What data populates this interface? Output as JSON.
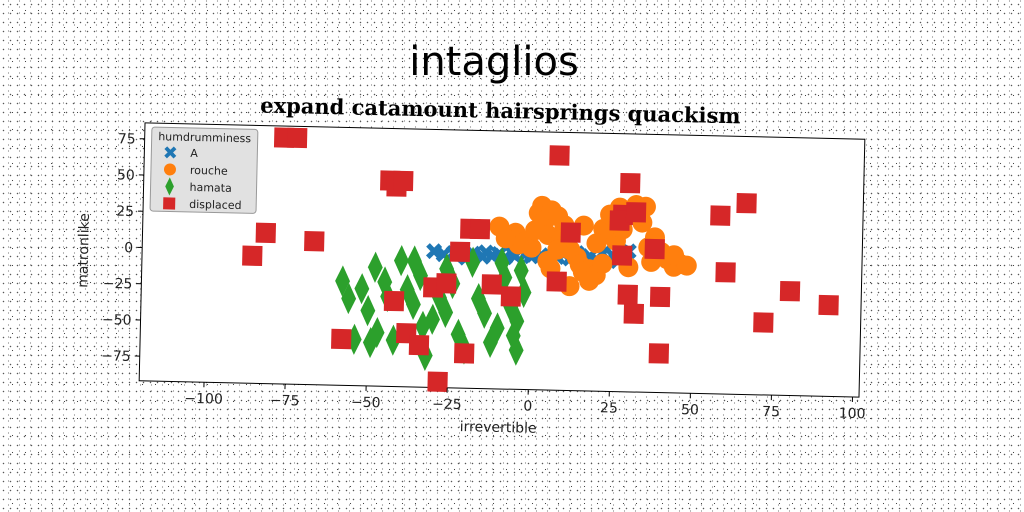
{
  "chart_data": {
    "type": "scatter",
    "suptitle": "intaglios",
    "title": "expand catamount hairsprings quackism",
    "xlabel": "irrevertible",
    "ylabel": "matronlike",
    "xlim": [
      -120,
      102
    ],
    "ylim": [
      -92,
      86
    ],
    "xticks": [
      -100,
      -75,
      -50,
      -25,
      0,
      25,
      50,
      75,
      100
    ],
    "yticks": [
      -75,
      -50,
      -25,
      0,
      25,
      50,
      75
    ],
    "xtick_labels": [
      "−100",
      "−75",
      "−50",
      "−25",
      "0",
      "25",
      "50",
      "75",
      "100"
    ],
    "ytick_labels": [
      "−75",
      "−50",
      "−25",
      "0",
      "25",
      "50",
      "75"
    ],
    "grid": false,
    "legend": {
      "title": "humdrumminess",
      "placement": "top-left"
    },
    "series": [
      {
        "name": "A",
        "marker": "X",
        "color": "#1f77b4",
        "points": [
          [
            -30,
            2
          ],
          [
            -27,
            0
          ],
          [
            -24,
            1
          ],
          [
            -21,
            0
          ],
          [
            -18,
            1
          ],
          [
            -15,
            -1
          ],
          [
            -12,
            0
          ],
          [
            -10,
            1
          ],
          [
            -8,
            -1
          ],
          [
            -5,
            0
          ],
          [
            -2,
            1
          ],
          [
            0,
            0
          ],
          [
            3,
            1
          ],
          [
            5,
            -1
          ],
          [
            8,
            0
          ],
          [
            10,
            2
          ],
          [
            12,
            -1
          ],
          [
            15,
            0
          ],
          [
            18,
            1
          ],
          [
            20,
            -1
          ],
          [
            22,
            3
          ],
          [
            25,
            2
          ],
          [
            28,
            4
          ],
          [
            30,
            5
          ],
          [
            -20,
            -2
          ],
          [
            -6,
            2
          ],
          [
            6,
            -2
          ],
          [
            14,
            3
          ],
          [
            24,
            -2
          ],
          [
            -14,
            2
          ]
        ]
      },
      {
        "name": "rouche",
        "marker": "o",
        "color": "#ff7f0e",
        "points": [
          [
            -10,
            20
          ],
          [
            -5,
            16
          ],
          [
            -2,
            10
          ],
          [
            0,
            6
          ],
          [
            2,
            30
          ],
          [
            3,
            35
          ],
          [
            4,
            25
          ],
          [
            5,
            15
          ],
          [
            6,
            32
          ],
          [
            8,
            28
          ],
          [
            10,
            22
          ],
          [
            12,
            5
          ],
          [
            14,
            0
          ],
          [
            15,
            -5
          ],
          [
            16,
            -10
          ],
          [
            18,
            -8
          ],
          [
            20,
            -12
          ],
          [
            22,
            20
          ],
          [
            24,
            30
          ],
          [
            25,
            15
          ],
          [
            27,
            35
          ],
          [
            28,
            33
          ],
          [
            30,
            30
          ],
          [
            32,
            37
          ],
          [
            35,
            36
          ],
          [
            38,
            15
          ],
          [
            40,
            5
          ],
          [
            42,
            0
          ],
          [
            44,
            -5
          ],
          [
            46,
            -3
          ],
          [
            48,
            -4
          ],
          [
            -4,
            8
          ],
          [
            6,
            -8
          ],
          [
            18,
            -16
          ],
          [
            30,
            -6
          ],
          [
            34,
            25
          ],
          [
            26,
            12
          ],
          [
            9,
            12
          ],
          [
            16,
            22
          ],
          [
            37,
            -2
          ],
          [
            12,
            -20
          ],
          [
            20,
            10
          ],
          [
            -8,
            12
          ],
          [
            1,
            18
          ],
          [
            8,
            5
          ],
          [
            22,
            -4
          ],
          [
            36,
            8
          ],
          [
            44,
            3
          ],
          [
            5,
            -3
          ],
          [
            28,
            20
          ]
        ]
      },
      {
        "name": "hamata",
        "marker": "d",
        "color": "#2ca02c",
        "points": [
          [
            -58,
            -20
          ],
          [
            -56,
            -32
          ],
          [
            -52,
            -25
          ],
          [
            -50,
            -40
          ],
          [
            -48,
            -10
          ],
          [
            -47,
            -55
          ],
          [
            -45,
            -20
          ],
          [
            -44,
            -30
          ],
          [
            -42,
            -60
          ],
          [
            -40,
            -5
          ],
          [
            -38,
            -25
          ],
          [
            -36,
            -35
          ],
          [
            -34,
            -15
          ],
          [
            -33,
            -50
          ],
          [
            -32,
            -70
          ],
          [
            -30,
            -45
          ],
          [
            -28,
            -30
          ],
          [
            -26,
            -10
          ],
          [
            -24,
            -20
          ],
          [
            -22,
            -55
          ],
          [
            -20,
            -65
          ],
          [
            -18,
            -5
          ],
          [
            -16,
            -30
          ],
          [
            -14,
            -40
          ],
          [
            -12,
            -60
          ],
          [
            -10,
            -50
          ],
          [
            -8,
            -15
          ],
          [
            -6,
            -35
          ],
          [
            -5,
            -55
          ],
          [
            -4,
            -65
          ],
          [
            -3,
            -10
          ],
          [
            -2,
            -25
          ],
          [
            -54,
            -60
          ],
          [
            -36,
            -5
          ],
          [
            -26,
            -40
          ],
          [
            -9,
            -5
          ],
          [
            -4,
            -45
          ],
          [
            -49,
            -62
          ]
        ]
      },
      {
        "name": "displaced",
        "marker": "s",
        "color": "#d62728",
        "points": [
          [
            -77,
            78
          ],
          [
            -73,
            78
          ],
          [
            -86,
            -4
          ],
          [
            -82,
            12
          ],
          [
            -67,
            7
          ],
          [
            -58,
            -60
          ],
          [
            -44,
            50
          ],
          [
            -42,
            46
          ],
          [
            -40,
            50
          ],
          [
            -42,
            -33
          ],
          [
            -38,
            -55
          ],
          [
            -34,
            -63
          ],
          [
            -30,
            -23
          ],
          [
            -28,
            -88
          ],
          [
            -26,
            -20
          ],
          [
            -22,
            2
          ],
          [
            -20,
            -68
          ],
          [
            -19,
            18
          ],
          [
            -16,
            18
          ],
          [
            -12,
            -20
          ],
          [
            -6,
            -28
          ],
          [
            8,
            -17
          ],
          [
            8,
            70
          ],
          [
            12,
            17
          ],
          [
            28,
            30
          ],
          [
            27,
            26
          ],
          [
            30,
            52
          ],
          [
            32,
            32
          ],
          [
            28,
            2
          ],
          [
            30,
            -25
          ],
          [
            32,
            -38
          ],
          [
            38,
            7
          ],
          [
            40,
            -26
          ],
          [
            40,
            -65
          ],
          [
            58,
            31
          ],
          [
            60,
            -8
          ],
          [
            66,
            40
          ],
          [
            72,
            -42
          ],
          [
            80,
            -20
          ],
          [
            92,
            -29
          ]
        ]
      }
    ]
  }
}
